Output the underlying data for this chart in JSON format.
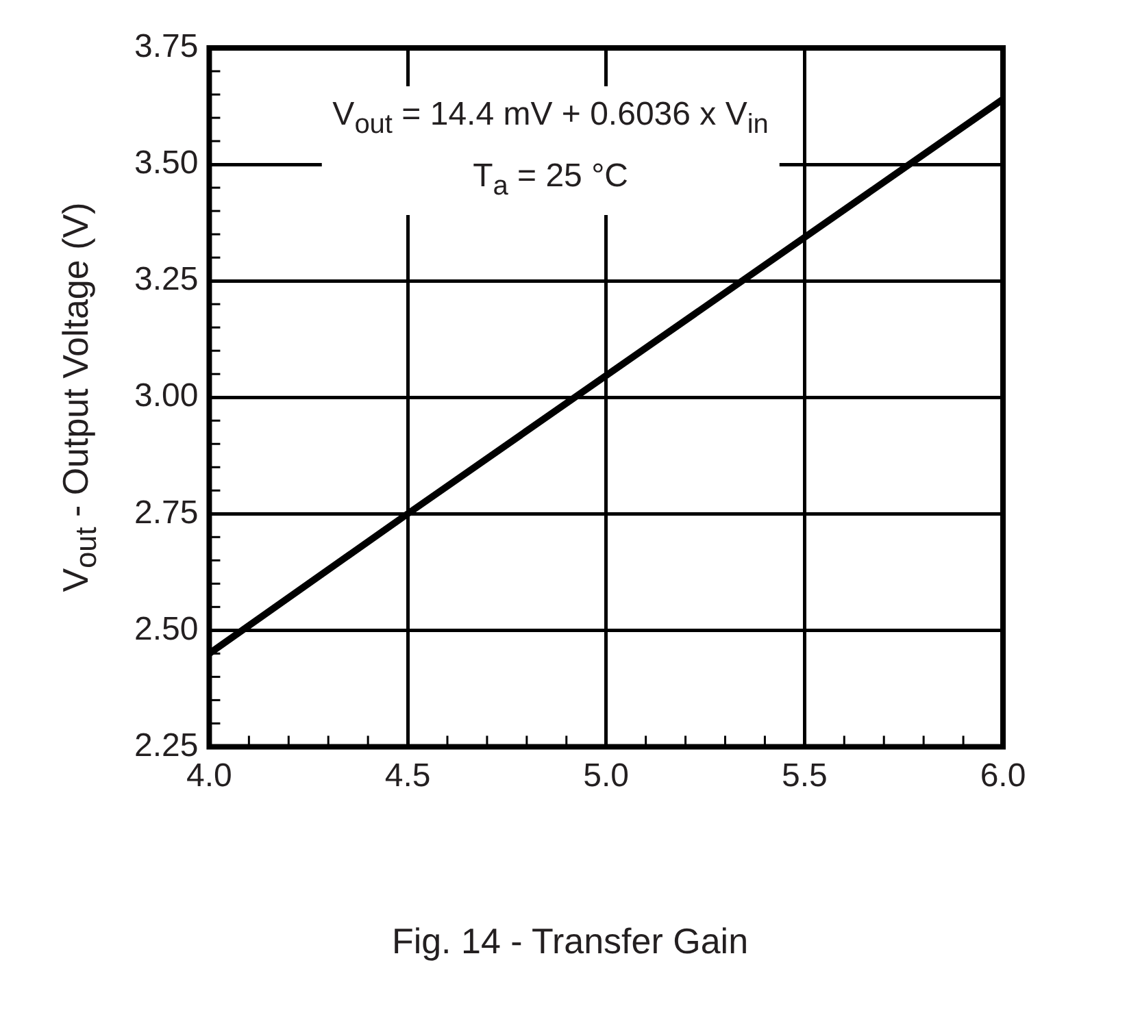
{
  "chart_data": {
    "type": "line",
    "title": "Fig. 14 - Transfer Gain",
    "ylabel": "V$_{out}$ - Output Voltage (V)",
    "annotations": [
      "V$_{out}$ = 14.4 mV + 0.6036 x V$_{in}$",
      "T$_{a}$ = 25 °C"
    ],
    "series": [
      {
        "color": "#000000",
        "x": [
          4.0,
          4.5,
          6.0
        ],
        "values": [
          2.45,
          2.75,
          3.64
        ]
      }
    ],
    "xlim": [
      4.0,
      6.0
    ],
    "xticks": [
      {
        "value": 4.0,
        "label": "4.0"
      },
      {
        "value": 4.1,
        "label": null
      },
      {
        "value": 4.2,
        "label": null
      },
      {
        "value": 4.3,
        "label": null
      },
      {
        "value": 4.4,
        "label": null
      },
      {
        "value": 4.5,
        "label": "4.5"
      },
      {
        "value": 4.6,
        "label": null
      },
      {
        "value": 4.7,
        "label": null
      },
      {
        "value": 4.8,
        "label": null
      },
      {
        "value": 4.9,
        "label": null
      },
      {
        "value": 5.0,
        "label": "5.0"
      },
      {
        "value": 5.1,
        "label": null
      },
      {
        "value": 5.2,
        "label": null
      },
      {
        "value": 5.3,
        "label": null
      },
      {
        "value": 5.4,
        "label": null
      },
      {
        "value": 5.5,
        "label": "5.5"
      },
      {
        "value": 5.6,
        "label": null
      },
      {
        "value": 5.7,
        "label": null
      },
      {
        "value": 5.8,
        "label": null
      },
      {
        "value": 5.9,
        "label": null
      },
      {
        "value": 6.0,
        "label": "6.0"
      }
    ],
    "ylim": [
      2.25,
      3.75
    ],
    "yticks": [
      {
        "value": 2.25,
        "label": "2.25"
      },
      {
        "value": 2.3,
        "label": null
      },
      {
        "value": 2.35,
        "label": null
      },
      {
        "value": 2.4,
        "label": null
      },
      {
        "value": 2.45,
        "label": null
      },
      {
        "value": 2.5,
        "label": "2.50"
      },
      {
        "value": 2.55,
        "label": null
      },
      {
        "value": 2.6,
        "label": null
      },
      {
        "value": 2.65,
        "label": null
      },
      {
        "value": 2.7,
        "label": null
      },
      {
        "value": 2.75,
        "label": "2.75"
      },
      {
        "value": 2.8,
        "label": null
      },
      {
        "value": 2.85,
        "label": null
      },
      {
        "value": 2.9,
        "label": null
      },
      {
        "value": 2.95,
        "label": null
      },
      {
        "value": 3.0,
        "label": "3.00"
      },
      {
        "value": 3.05,
        "label": null
      },
      {
        "value": 3.1,
        "label": null
      },
      {
        "value": 3.15,
        "label": null
      },
      {
        "value": 3.2,
        "label": null
      },
      {
        "value": 3.25,
        "label": "3.25"
      },
      {
        "value": 3.3,
        "label": null
      },
      {
        "value": 3.35,
        "label": null
      },
      {
        "value": 3.4,
        "label": null
      },
      {
        "value": 3.45,
        "label": null
      },
      {
        "value": 3.5,
        "label": "3.50"
      },
      {
        "value": 3.55,
        "label": null
      },
      {
        "value": 3.6,
        "label": null
      },
      {
        "value": 3.65,
        "label": null
      },
      {
        "value": 3.7,
        "label": null
      },
      {
        "value": 3.75,
        "label": "3.75"
      }
    ],
    "grid": true,
    "legend": false,
    "marker": "none",
    "line_style": "solid"
  }
}
